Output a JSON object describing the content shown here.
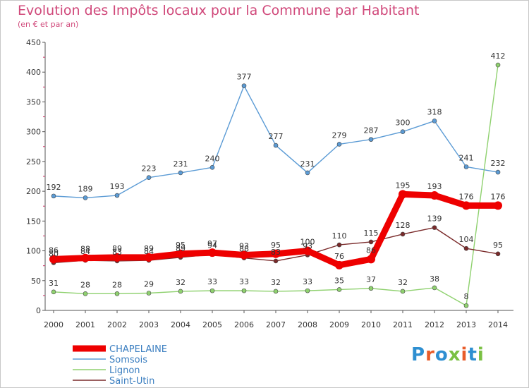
{
  "title": "Evolution des Impôts locaux pour la Commune par Habitant",
  "subtitle": "(en € et par an)",
  "logo": {
    "text": "Proxiti",
    "colors": [
      "#2e8fd1",
      "#e85c2a",
      "#2e8fd1",
      "#7ac043",
      "#e85c2a",
      "#2e8fd1",
      "#7ac043"
    ]
  },
  "chart_data": {
    "type": "line",
    "x": [
      "2000",
      "2001",
      "2002",
      "2003",
      "2004",
      "2005",
      "2006",
      "2007",
      "2008",
      "2009",
      "2010",
      "2011",
      "2012",
      "2013",
      "2014"
    ],
    "ylim": [
      0,
      450
    ],
    "yticks": [
      0,
      50,
      100,
      150,
      200,
      250,
      300,
      350,
      400,
      450
    ],
    "grid": false,
    "legend_position": "bottom-left",
    "series": [
      {
        "name": "CHAPELAINE",
        "color": "#ee0000",
        "style": "thick",
        "values": [
          86,
          88,
          89,
          89,
          95,
          97,
          93,
          95,
          100,
          76,
          86,
          195,
          193,
          176,
          176
        ]
      },
      {
        "name": "Somsois",
        "color": "#5b9bd5",
        "style": "thin",
        "values": [
          192,
          189,
          193,
          223,
          231,
          240,
          377,
          277,
          231,
          279,
          287,
          300,
          318,
          241,
          232
        ]
      },
      {
        "name": "Lignon",
        "color": "#8fd16f",
        "style": "thin",
        "values": [
          31,
          28,
          28,
          29,
          32,
          33,
          33,
          32,
          33,
          35,
          37,
          32,
          38,
          8,
          412
        ]
      },
      {
        "name": "Saint-Utin",
        "color": "#7a2a2a",
        "style": "thin",
        "values": [
          80,
          84,
          83,
          84,
          89,
          94,
          88,
          83,
          93,
          110,
          115,
          128,
          139,
          104,
          95
        ]
      }
    ]
  }
}
